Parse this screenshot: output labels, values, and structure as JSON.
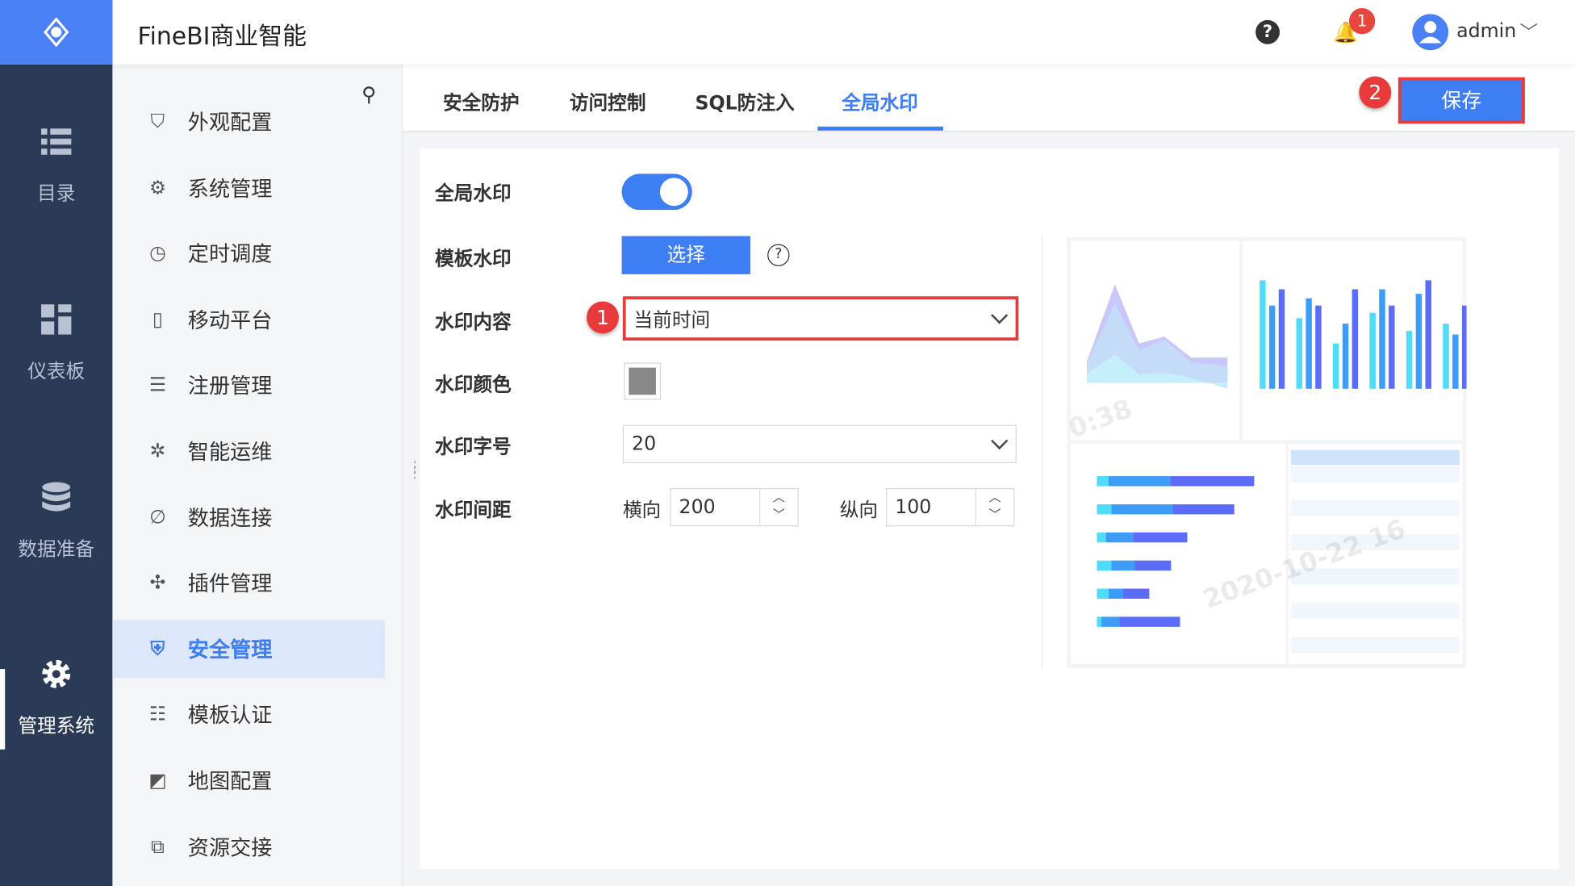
{
  "header": {
    "title": "FineBI商业智能",
    "notification_count": "1",
    "user": "admin",
    "icons": [
      "logo-icon",
      "help-icon",
      "bell-icon",
      "user-icon",
      "chevron-down-icon"
    ]
  },
  "nav_primary": [
    {
      "label": "目录",
      "icon": "list-icon"
    },
    {
      "label": "仪表板",
      "icon": "dashboard-icon"
    },
    {
      "label": "数据准备",
      "icon": "database-icon"
    },
    {
      "label": "管理系统",
      "icon": "gear-icon",
      "active": true
    }
  ],
  "nav_secondary": [
    {
      "label": "外观配置",
      "icon": "appearance-icon"
    },
    {
      "label": "系统管理",
      "icon": "gear-icon"
    },
    {
      "label": "定时调度",
      "icon": "timer-icon"
    },
    {
      "label": "移动平台",
      "icon": "mobile-icon"
    },
    {
      "label": "注册管理",
      "icon": "register-icon"
    },
    {
      "label": "智能运维",
      "icon": "ops-icon"
    },
    {
      "label": "数据连接",
      "icon": "link-icon"
    },
    {
      "label": "插件管理",
      "icon": "plugin-icon"
    },
    {
      "label": "安全管理",
      "icon": "shield-icon",
      "active": true
    },
    {
      "label": "模板认证",
      "icon": "certify-icon"
    },
    {
      "label": "地图配置",
      "icon": "map-icon"
    },
    {
      "label": "资源交接",
      "icon": "handover-icon"
    }
  ],
  "tabs": [
    {
      "label": "安全防护"
    },
    {
      "label": "访问控制"
    },
    {
      "label": "SQL防注入"
    },
    {
      "label": "全局水印",
      "active": true
    }
  ],
  "save_label": "保存",
  "annotations": [
    "1",
    "2"
  ],
  "form": {
    "global_watermark": {
      "label": "全局水印",
      "enabled": true
    },
    "template_watermark": {
      "label": "模板水印",
      "button": "选择",
      "help": "?"
    },
    "content": {
      "label": "水印内容",
      "value": "当前时间"
    },
    "color": {
      "label": "水印颜色",
      "value": "#888888"
    },
    "font_size": {
      "label": "水印字号",
      "value": "20"
    },
    "spacing": {
      "label": "水印间距",
      "h_label": "横向",
      "h_value": "200",
      "v_label": "纵向",
      "v_value": "100"
    }
  },
  "preview": {
    "watermark_1": "0:38",
    "watermark_2": "2020-10-22 16"
  },
  "colors": {
    "accent": "#3d7ef5",
    "sidebar": "#2b3a57",
    "annotation": "#e83a3a"
  }
}
